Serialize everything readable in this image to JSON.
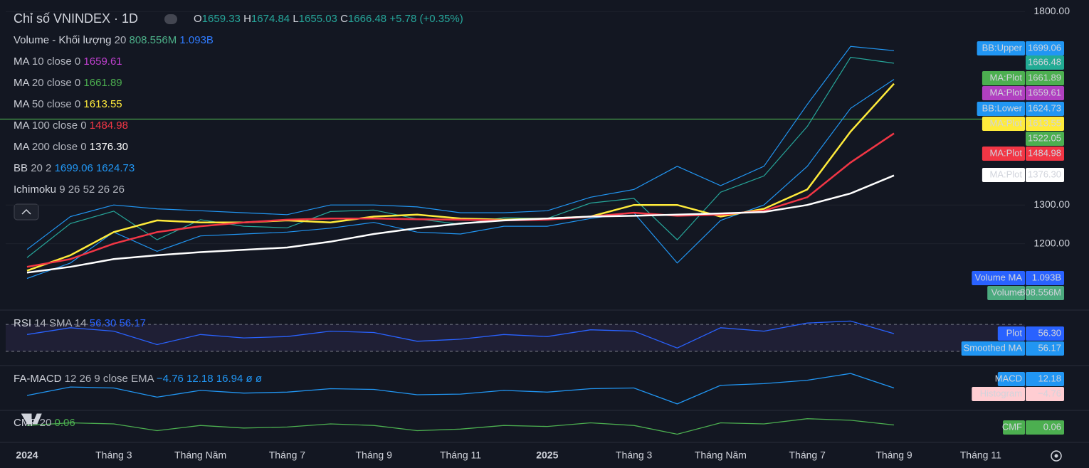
{
  "chart_data": {
    "type": "line",
    "title": "Chỉ số VNINDEX · 1D",
    "ohlc": [
      {
        "label": "O",
        "value": "1659.33"
      },
      {
        "label": "H",
        "value": "1674.84"
      },
      {
        "label": "L",
        "value": "1655.03"
      },
      {
        "label": "C",
        "value": "1666.48"
      }
    ],
    "change": "+5.78 (+0.35%)",
    "legend": [
      {
        "name": "Volume - Khối lượng",
        "params": "20",
        "values": [
          "808.556M",
          "1.093B"
        ],
        "colors": [
          "#4caf88",
          "#2f7bff"
        ]
      },
      {
        "name": "MA",
        "params": "10 close 0",
        "values": [
          "1659.61"
        ],
        "colors": [
          "#c040d0"
        ]
      },
      {
        "name": "MA",
        "params": "20 close 0",
        "values": [
          "1661.89"
        ],
        "colors": [
          "#4caf50"
        ]
      },
      {
        "name": "MA",
        "params": "50 close 0",
        "values": [
          "1613.55"
        ],
        "colors": [
          "#ffeb3b"
        ]
      },
      {
        "name": "MA",
        "params": "100 close 0",
        "values": [
          "1484.98"
        ],
        "colors": [
          "#f23645"
        ]
      },
      {
        "name": "MA",
        "params": "200 close 0",
        "values": [
          "1376.30"
        ],
        "colors": [
          "#ffffff"
        ]
      },
      {
        "name": "BB",
        "params": "20 2",
        "values": [
          "1699.06",
          "1624.73"
        ],
        "colors": [
          "#2196f3",
          "#2196f3"
        ]
      },
      {
        "name": "Ichimoku",
        "params": "9 26 52 26 26",
        "values": [],
        "colors": []
      }
    ],
    "categories": [
      "2024",
      null,
      "Tháng 3",
      null,
      "Tháng Năm",
      null,
      "Tháng 7",
      null,
      "Tháng 9",
      null,
      "Tháng 11",
      null,
      "2025",
      null,
      "Tháng 3",
      null,
      "Tháng Năm",
      null,
      "Tháng 7",
      null,
      "Tháng 9",
      null,
      "Tháng 11"
    ],
    "ylim": [
      1030,
      1830
    ],
    "yticks": [
      {
        "value": 1200,
        "label": "1200.00"
      },
      {
        "value": 1300,
        "label": "1300.00"
      },
      {
        "value": 1800,
        "label": "1800.00"
      }
    ],
    "series": [
      {
        "name": "BB:Upper",
        "color": "#2196f3",
        "values": [
          1185,
          1270,
          1300,
          1290,
          1285,
          1280,
          1275,
          1300,
          1300,
          1295,
          1280,
          1280,
          1285,
          1320,
          1340,
          1400,
          1350,
          1400,
          1560,
          1710,
          1699.06,
          null,
          null
        ]
      },
      {
        "name": "BB:Lower",
        "color": "#2196f3",
        "values": [
          1110,
          1150,
          1230,
          1180,
          1220,
          1225,
          1230,
          1240,
          1255,
          1230,
          1225,
          1245,
          1245,
          1265,
          1280,
          1150,
          1260,
          1300,
          1400,
          1550,
          1624.73,
          null,
          null
        ]
      },
      {
        "color": "#26a69a",
        "values": [
          1164,
          1252,
          1284,
          1210,
          1262,
          1245,
          1241,
          1283,
          1287,
          1264,
          1250,
          1267,
          1265,
          1305,
          1317,
          1210,
          1333,
          1375,
          1503,
          1682,
          1666.48,
          null,
          null
        ]
      },
      {
        "name": "MA:Plot",
        "color": "#ffeb3b",
        "values": [
          1130,
          1170,
          1230,
          1260,
          1255,
          1255,
          1260,
          1255,
          1270,
          1275,
          1265,
          1262,
          1265,
          1270,
          1300,
          1300,
          1270,
          1290,
          1340,
          1490,
          1613.55,
          null,
          null
        ]
      },
      {
        "name": "MA:Plot",
        "color": "#f23645",
        "values": [
          1140,
          1160,
          1200,
          1230,
          1245,
          1255,
          1262,
          1265,
          1265,
          1263,
          1262,
          1260,
          1262,
          1270,
          1280,
          1272,
          1275,
          1285,
          1320,
          1410,
          1484.98,
          null,
          null
        ]
      },
      {
        "name": "MA:Plot",
        "color": "#ffffff",
        "values": [
          1125,
          1140,
          1160,
          1170,
          1178,
          1184,
          1190,
          1205,
          1225,
          1240,
          1252,
          1260,
          1265,
          1270,
          1272,
          1275,
          1278,
          1282,
          1300,
          1330,
          1376.3,
          null,
          null
        ]
      }
    ],
    "price_line": 1522.05,
    "price_line_color": "#4caf50",
    "tags": [
      {
        "label": "BB:Upper",
        "value": "1699.06",
        "color": "#2196f3",
        "text_color": "#ffffff"
      },
      {
        "value": "1666.48",
        "color": "#22ab94",
        "text_color": "#ffffff"
      },
      {
        "label": "MA:Plot",
        "value": "1661.89",
        "color": "#4caf50",
        "text_color": "#ffffff"
      },
      {
        "label": "MA:Plot",
        "value": "1659.61",
        "color": "#b040c0",
        "text_color": "#ffffff"
      },
      {
        "label": "BB:Lower",
        "value": "1624.73",
        "color": "#2196f3",
        "text_color": "#ffffff"
      },
      {
        "label": "MA:Plot",
        "value": "1613.55",
        "color": "#ffeb3b",
        "text_color": "#000000"
      },
      {
        "label": "MA:Plot",
        "value": "1484.98",
        "color": "#f23645",
        "text_color": "#ffffff"
      },
      {
        "label": "MA:Plot",
        "value": "1376.30",
        "color": "#ffffff",
        "text_color": "#000000"
      },
      {
        "label": "Volume MA",
        "value": "1.093B",
        "color": "#2962ff",
        "text_color": "#ffffff"
      },
      {
        "label": "Volume",
        "value": "808.556M",
        "color": "#4caa7f",
        "text_color": "#ffffff"
      },
      {
        "label": "Plot",
        "value": "56.30",
        "color": "#2962ff",
        "text_color": "#ffffff"
      },
      {
        "label": "Smoothed MA",
        "value": "56.17",
        "color": "#2196f3",
        "text_color": "#ffffff"
      },
      {
        "label": "MACD",
        "value": "12.18",
        "color": "#2196f3",
        "text_color": "#ffffff"
      },
      {
        "label": "Histogram",
        "value": "−4.76",
        "color": "#ffcdd2",
        "text_color": "#000000"
      },
      {
        "label": "CMF",
        "value": "0.06",
        "color": "#4caf50",
        "text_color": "#ffffff"
      }
    ],
    "panes": [
      {
        "label": "RSI",
        "params": "14 SMA 14",
        "legend_values": [
          "56.30",
          "56.17"
        ],
        "color": "#2962ff",
        "values": [
          55,
          65,
          60,
          40,
          55,
          50,
          52,
          60,
          58,
          45,
          48,
          55,
          52,
          62,
          60,
          35,
          65,
          60,
          72,
          75,
          56.3,
          null,
          null
        ],
        "ylim": [
          11,
          87
        ],
        "levels": [
          30,
          70
        ]
      },
      {
        "label": "FA-MACD",
        "params": "12 26 9 close EMA",
        "legend_values": [
          "−4.76",
          "12.18",
          "16.94",
          "ø",
          "ø"
        ],
        "color": "#2196f3",
        "values": [
          -10,
          15,
          12,
          -15,
          5,
          -3,
          0,
          10,
          8,
          -8,
          -6,
          5,
          0,
          10,
          12,
          -35,
          20,
          25,
          35,
          55,
          12.18,
          null,
          null
        ],
        "ylim": [
          -50,
          70
        ],
        "levels": []
      },
      {
        "label": "CMF",
        "params": "20",
        "legend_values": [
          "0.06"
        ],
        "color": "#4caf50",
        "values": [
          0.05,
          0.1,
          0.08,
          -0.05,
          0.05,
          0.0,
          0.02,
          0.08,
          0.05,
          -0.05,
          -0.02,
          0.05,
          0.03,
          0.1,
          0.05,
          -0.12,
          0.1,
          0.08,
          0.18,
          0.15,
          0.06,
          null,
          null
        ],
        "ylim": [
          -0.25,
          0.3
        ],
        "levels": []
      }
    ]
  }
}
